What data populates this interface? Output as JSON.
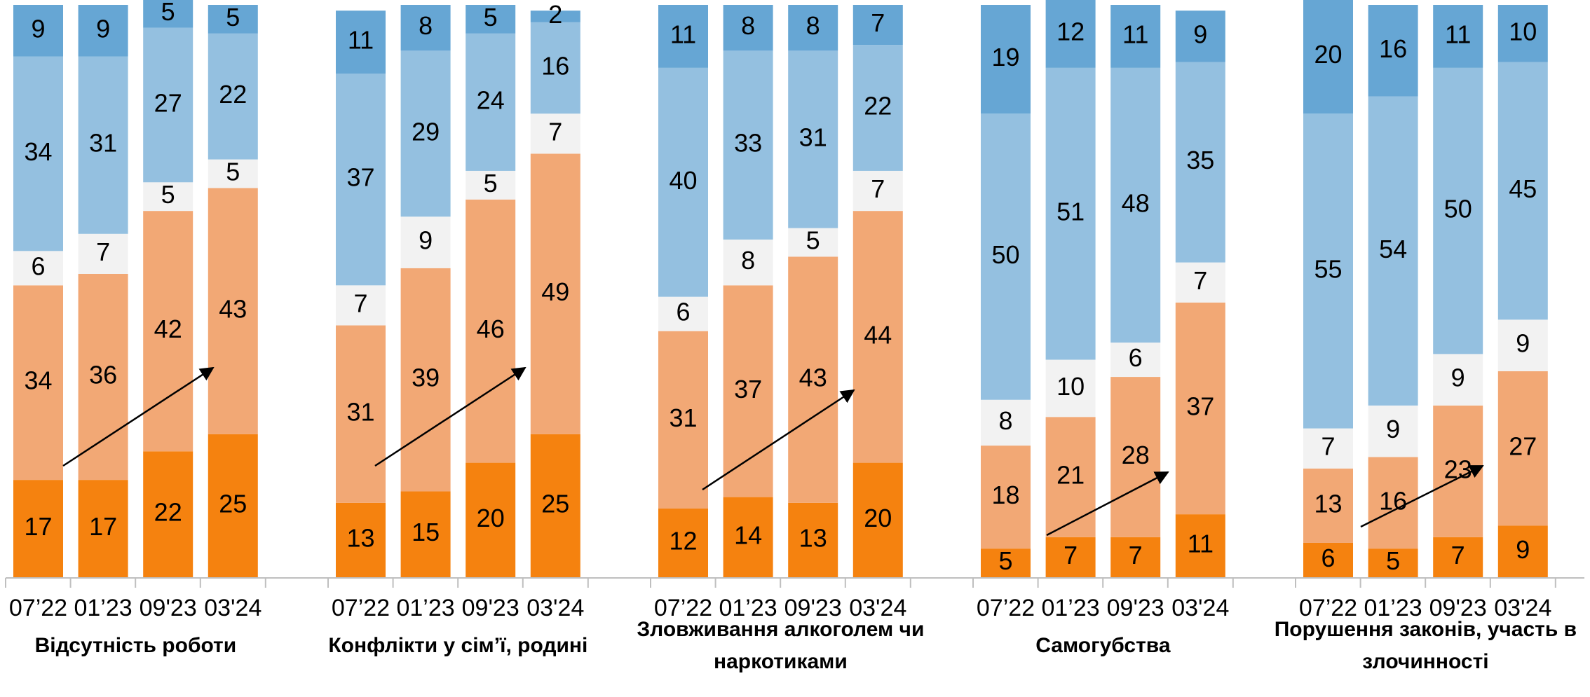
{
  "chart_data": [
    {
      "type": "bar",
      "stacked": true,
      "title": "Відсутність роботи",
      "categories": [
        "07’22",
        "01’23",
        "09'23",
        "03'24"
      ],
      "ylim": [
        0,
        100
      ],
      "series": [
        {
          "color": "#f5820f",
          "values": [
            17,
            17,
            22,
            25
          ]
        },
        {
          "color": "#f2a875",
          "values": [
            34,
            36,
            42,
            43
          ]
        },
        {
          "color": "#f2f2f2",
          "values": [
            6,
            7,
            5,
            5
          ]
        },
        {
          "color": "#94c0e0",
          "values": [
            34,
            31,
            27,
            22
          ]
        },
        {
          "color": "#66a6d4",
          "values": [
            9,
            9,
            5,
            5
          ]
        }
      ]
    },
    {
      "type": "bar",
      "stacked": true,
      "title": "Конфлікти у сім’ї, родині",
      "categories": [
        "07’22",
        "01’23",
        "09'23",
        "03'24"
      ],
      "ylim": [
        0,
        100
      ],
      "series": [
        {
          "color": "#f5820f",
          "values": [
            13,
            15,
            20,
            25
          ]
        },
        {
          "color": "#f2a875",
          "values": [
            31,
            39,
            46,
            49
          ]
        },
        {
          "color": "#f2f2f2",
          "values": [
            7,
            9,
            5,
            7
          ]
        },
        {
          "color": "#94c0e0",
          "values": [
            37,
            29,
            24,
            16
          ]
        },
        {
          "color": "#66a6d4",
          "values": [
            11,
            8,
            5,
            2
          ]
        }
      ]
    },
    {
      "type": "bar",
      "stacked": true,
      "title": "Зловживання алкоголем чи наркотиками",
      "categories": [
        "07’22",
        "01’23",
        "09'23",
        "03'24"
      ],
      "ylim": [
        0,
        100
      ],
      "series": [
        {
          "color": "#f5820f",
          "values": [
            12,
            14,
            13,
            20
          ]
        },
        {
          "color": "#f2a875",
          "values": [
            31,
            37,
            43,
            44
          ]
        },
        {
          "color": "#f2f2f2",
          "values": [
            6,
            8,
            5,
            7
          ]
        },
        {
          "color": "#94c0e0",
          "values": [
            40,
            33,
            31,
            22
          ]
        },
        {
          "color": "#66a6d4",
          "values": [
            11,
            8,
            8,
            7
          ]
        }
      ]
    },
    {
      "type": "bar",
      "stacked": true,
      "title": "Самогубства",
      "categories": [
        "07’22",
        "01’23",
        "09'23",
        "03'24"
      ],
      "ylim": [
        0,
        100
      ],
      "series": [
        {
          "color": "#f5820f",
          "values": [
            5,
            7,
            7,
            11
          ]
        },
        {
          "color": "#f2a875",
          "values": [
            18,
            21,
            28,
            37
          ]
        },
        {
          "color": "#f2f2f2",
          "values": [
            8,
            10,
            6,
            7
          ]
        },
        {
          "color": "#94c0e0",
          "values": [
            50,
            51,
            48,
            35
          ]
        },
        {
          "color": "#66a6d4",
          "values": [
            19,
            12,
            11,
            9
          ]
        }
      ]
    },
    {
      "type": "bar",
      "stacked": true,
      "title": "Порушення законів, участь в злочинності",
      "categories": [
        "07’22",
        "01’23",
        "09'23",
        "03'24"
      ],
      "ylim": [
        0,
        100
      ],
      "series": [
        {
          "color": "#f5820f",
          "values": [
            6,
            5,
            7,
            9
          ]
        },
        {
          "color": "#f2a875",
          "values": [
            13,
            16,
            23,
            27
          ]
        },
        {
          "color": "#f2f2f2",
          "values": [
            7,
            9,
            9,
            9
          ]
        },
        {
          "color": "#94c0e0",
          "values": [
            55,
            54,
            50,
            45
          ]
        },
        {
          "color": "#66a6d4",
          "values": [
            20,
            16,
            11,
            10
          ]
        }
      ]
    }
  ]
}
